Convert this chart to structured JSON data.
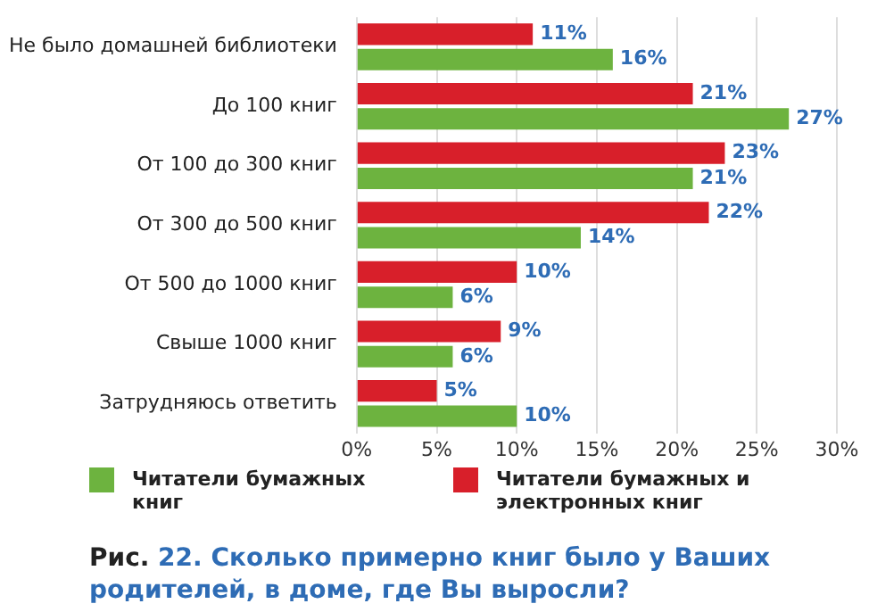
{
  "chart_data": {
    "type": "bar",
    "orientation": "horizontal",
    "title": "Рис. 22. Сколько примерно книг было у Ваших родителей, в доме, где Вы выросли?",
    "categories": [
      "Не было домашней библиотеки",
      "До 100 книг",
      "От 100 до 300 книг",
      "От 300 до 500 книг",
      "От 500 до 1000 книг",
      "Свыше 1000 книг",
      "Затрудняюсь ответить"
    ],
    "series": [
      {
        "name": "Читатели бумажных и электронных книг",
        "color": "#d81f2a",
        "values": [
          11,
          21,
          23,
          22,
          10,
          9,
          5
        ],
        "value_labels": [
          "11%",
          "21%",
          "23%",
          "22%",
          "10%",
          "9%",
          "5%"
        ]
      },
      {
        "name": "Читатели бумажных книг",
        "color": "#6db33f",
        "values": [
          16,
          27,
          21,
          14,
          6,
          6,
          10
        ],
        "value_labels": [
          "16%",
          "27%",
          "21%",
          "14%",
          "6%",
          "6%",
          "10%"
        ]
      }
    ],
    "xlim": [
      0,
      30
    ],
    "xticks": [
      {
        "value": 0,
        "label": "0%"
      },
      {
        "value": 5,
        "label": "5%"
      },
      {
        "value": 10,
        "label": "10%"
      },
      {
        "value": 15,
        "label": "15%"
      },
      {
        "value": 20,
        "label": "20%"
      },
      {
        "value": 25,
        "label": "25%"
      },
      {
        "value": 30,
        "label": "30%"
      }
    ],
    "grid": "x",
    "legend": "bottom"
  }
}
